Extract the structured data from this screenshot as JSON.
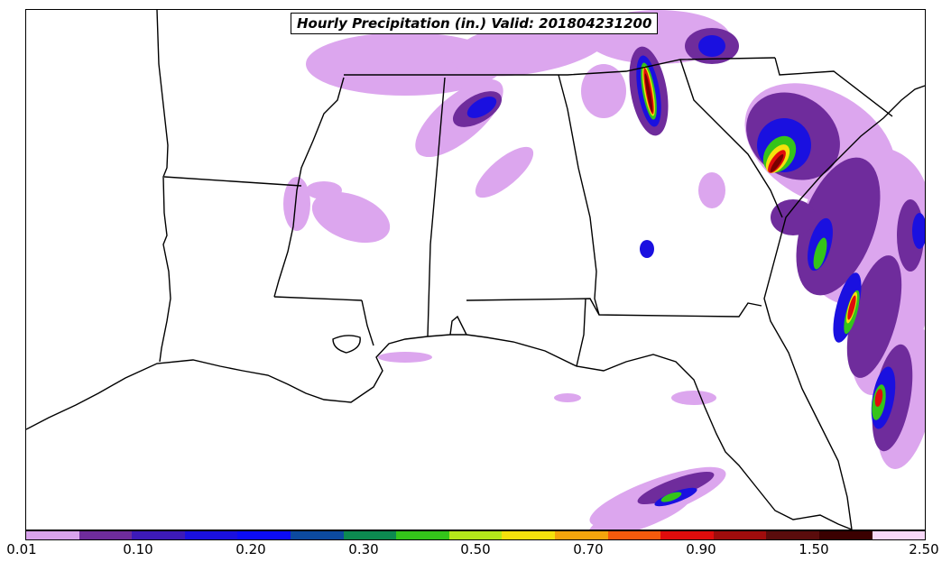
{
  "title": "Hourly Precipitation (in.) Valid: 201804231200",
  "colorbar": {
    "colors": [
      "#d9a3ec",
      "#6f2c9c",
      "#3d1ab8",
      "#1a10e0",
      "#0c0cf5",
      "#0c4aa0",
      "#0c8a50",
      "#34c41a",
      "#b4e81a",
      "#f5e10c",
      "#f5a50c",
      "#f55a0c",
      "#e00c0c",
      "#a00c0c",
      "#5a0c0c",
      "#3a0000",
      "#f8d8f8"
    ],
    "tick_labels": [
      "0.01",
      "0.10",
      "0.20",
      "0.30",
      "0.50",
      "0.70",
      "0.90",
      "1.50",
      "2.50"
    ]
  },
  "palette": {
    "lavender": "#dca6ee",
    "purple": "#6f2c9c",
    "blue": "#1a10e0",
    "green": "#34c41a",
    "yellow": "#f5e10c",
    "red": "#e00c0c",
    "darkred": "#7a0000"
  }
}
